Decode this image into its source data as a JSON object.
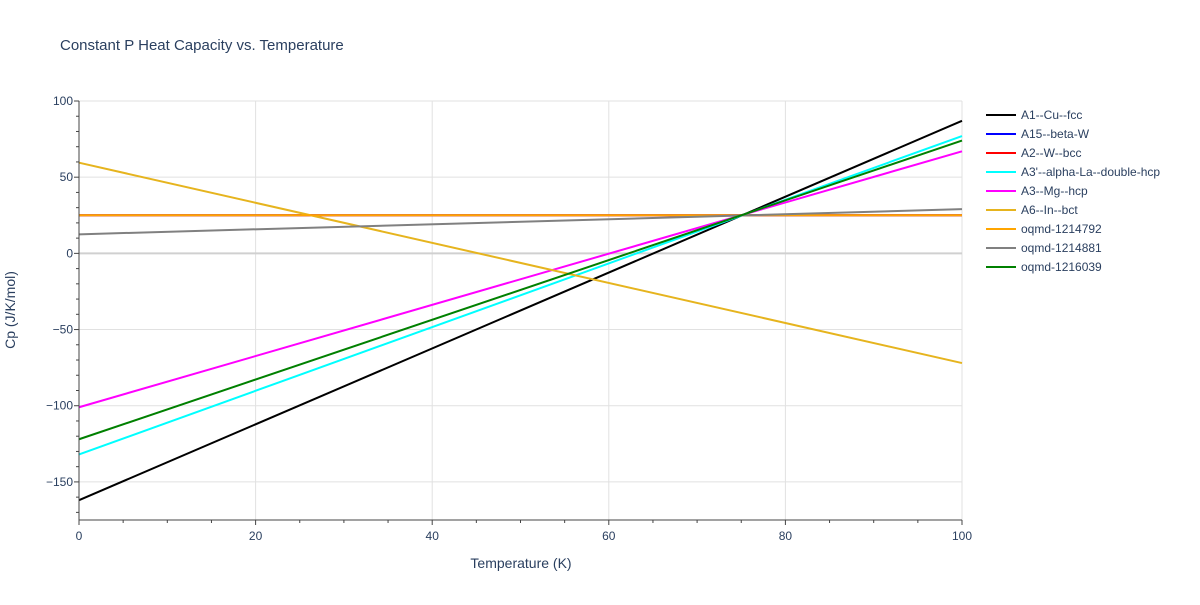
{
  "chart_data": {
    "type": "line",
    "title": "Constant P Heat Capacity vs. Temperature",
    "xlabel": "Temperature (K)",
    "ylabel": "Cp (J/K/mol)",
    "xlim": [
      0,
      100
    ],
    "ylim": [
      -175,
      100
    ],
    "x_ticks": [
      0,
      20,
      40,
      60,
      80,
      100
    ],
    "y_ticks": [
      -150,
      -100,
      -50,
      0,
      50,
      100
    ],
    "y_tick_labels": [
      "−150",
      "−100",
      "−50",
      "0",
      "50",
      "100"
    ],
    "x_tick_labels": [
      "0",
      "20",
      "40",
      "60",
      "80",
      "100"
    ],
    "grid": true,
    "legend_position": "right",
    "series": [
      {
        "name": "A1--Cu--fcc",
        "color": "#000000",
        "x": [
          0,
          100
        ],
        "y": [
          -162,
          87
        ]
      },
      {
        "name": "A15--beta-W",
        "color": "#0000ff",
        "x": [
          0,
          100
        ],
        "y": [
          25,
          25
        ]
      },
      {
        "name": "A2--W--bcc",
        "color": "#ff0000",
        "x": [
          0,
          100
        ],
        "y": [
          25,
          25
        ]
      },
      {
        "name": "A3'--alpha-La--double-hcp",
        "color": "#00ffff",
        "x": [
          0,
          100
        ],
        "y": [
          -132,
          77
        ]
      },
      {
        "name": "A3--Mg--hcp",
        "color": "#ff00ff",
        "x": [
          0,
          100
        ],
        "y": [
          -101,
          67
        ]
      },
      {
        "name": "A6--In--bct",
        "color": "#e6b41e",
        "x": [
          0,
          100
        ],
        "y": [
          59.5,
          -72
        ]
      },
      {
        "name": "oqmd-1214792",
        "color": "#ffa500",
        "x": [
          0,
          100
        ],
        "y": [
          25,
          25
        ]
      },
      {
        "name": "oqmd-1214881",
        "color": "#808080",
        "x": [
          0,
          100
        ],
        "y": [
          12.5,
          29
        ]
      },
      {
        "name": "oqmd-1216039",
        "color": "#008000",
        "x": [
          0,
          100
        ],
        "y": [
          -122,
          74
        ]
      }
    ]
  }
}
